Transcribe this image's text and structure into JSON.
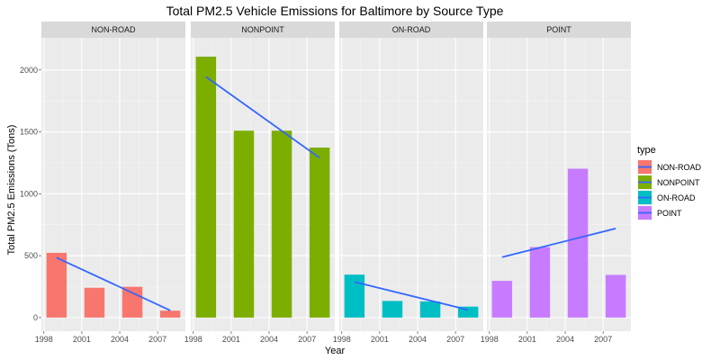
{
  "chart_data": {
    "type": "bar",
    "title": "Total PM2.5 Vehicle Emissions for Baltimore by Source Type",
    "xlabel": "Year",
    "ylabel": "Total PM2.5 Emissions (Tons)",
    "x_ticks": [
      "1998",
      "2001",
      "2004",
      "2007"
    ],
    "y_ticks": [
      0,
      500,
      1000,
      1500,
      2000
    ],
    "ylim": [
      -110,
      2260
    ],
    "xlim": [
      1997.8,
      2009.2
    ],
    "grid": true,
    "legend_title": "type",
    "legend_position": "right",
    "trend_color": "#3366FF",
    "facets": [
      {
        "name": "NON-ROAD",
        "color": "#F8766D",
        "x": [
          1999,
          2002,
          2005,
          2008
        ],
        "values": [
          522.9,
          240.8,
          248.9,
          55.8
        ],
        "trend": {
          "start": 484,
          "end": 58
        }
      },
      {
        "name": "NONPOINT",
        "color": "#7CAE00",
        "x": [
          1999,
          2002,
          2005,
          2008
        ],
        "values": [
          2107.6,
          1509.5,
          1509.5,
          1373.2
        ],
        "trend": {
          "start": 1945,
          "end": 1290
        }
      },
      {
        "name": "ON-ROAD",
        "color": "#00BFC4",
        "x": [
          1999,
          2002,
          2005,
          2008
        ],
        "values": [
          346.8,
          134.3,
          130.4,
          88.3
        ],
        "trend": {
          "start": 288,
          "end": 62
        }
      },
      {
        "name": "POINT",
        "color": "#C77CFF",
        "x": [
          1999,
          2002,
          2005,
          2008
        ],
        "values": [
          296.8,
          569.3,
          1202.5,
          344.98
        ],
        "trend": {
          "start": 488,
          "end": 720
        }
      }
    ]
  }
}
